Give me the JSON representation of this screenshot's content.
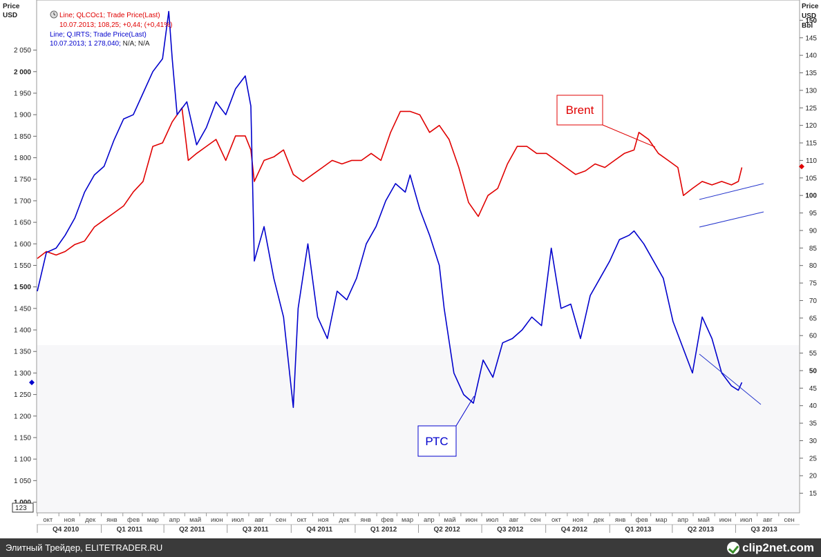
{
  "left_axis": {
    "title_line1": "Price",
    "title_line2": "USD",
    "badge": "123"
  },
  "right_axis": {
    "title_line1": "Price",
    "title_line2": "USD",
    "title_line3": "Bbl"
  },
  "legend": [
    {
      "line1": "Line; QLCOc1; Trade Price(Last)",
      "line2_a": "10.07.2013; 108,25; +0,44; (+0,41%)",
      "line2_b": "",
      "color": "#e00000"
    },
    {
      "line1": "Line; Q.IRTS; Trade Price(Last)",
      "line2_a": "10.07.2013; 1 278,040;",
      "line2_b": " N/A; N/A",
      "color": "#0000cc"
    }
  ],
  "annotations": {
    "brent": "Brent",
    "rts": "РТС"
  },
  "footer": {
    "left_text": "Элитный Трейдер, ELITETRADER.RU",
    "logo_text": "clip2net.com"
  },
  "chart_data": {
    "type": "line",
    "title": "",
    "x_start": "2010-10-01",
    "x_end": "2013-09-30",
    "left_axis": {
      "min": 980,
      "max": 2160,
      "ticks": [
        1000,
        1050,
        1100,
        1150,
        1200,
        1250,
        1300,
        1350,
        1400,
        1450,
        1500,
        1550,
        1600,
        1650,
        1700,
        1750,
        1800,
        1850,
        1900,
        1950,
        2000,
        2050
      ],
      "tick_labels": [
        "1 000",
        "1 050",
        "1 100",
        "1 150",
        "1 200",
        "1 250",
        "1 300",
        "1 350",
        "1 400",
        "1 450",
        "1 500",
        "1 550",
        "1 600",
        "1 650",
        "1 700",
        "1 750",
        "1 800",
        "1 850",
        "1 900",
        "1 950",
        "2 000",
        "2 050"
      ],
      "bold_ticks": [
        "1 000",
        "1 500",
        "2 000"
      ]
    },
    "right_axis": {
      "min": 10,
      "max": 155,
      "ticks": [
        15,
        20,
        25,
        30,
        35,
        40,
        45,
        50,
        55,
        60,
        65,
        70,
        75,
        80,
        85,
        90,
        95,
        100,
        105,
        110,
        115,
        120,
        125,
        130,
        135,
        140,
        145,
        150
      ],
      "bold_ticks": [
        50,
        100,
        150
      ]
    },
    "months": [
      {
        "date": "2010-10-01",
        "label": "окт"
      },
      {
        "date": "2010-11-01",
        "label": "ноя"
      },
      {
        "date": "2010-12-01",
        "label": "дек"
      },
      {
        "date": "2011-01-01",
        "label": "янв"
      },
      {
        "date": "2011-02-01",
        "label": "фев"
      },
      {
        "date": "2011-03-01",
        "label": "мар"
      },
      {
        "date": "2011-04-01",
        "label": "апр"
      },
      {
        "date": "2011-05-01",
        "label": "май"
      },
      {
        "date": "2011-06-01",
        "label": "июн"
      },
      {
        "date": "2011-07-01",
        "label": "июл"
      },
      {
        "date": "2011-08-01",
        "label": "авг"
      },
      {
        "date": "2011-09-01",
        "label": "сен"
      },
      {
        "date": "2011-10-01",
        "label": "окт"
      },
      {
        "date": "2011-11-01",
        "label": "ноя"
      },
      {
        "date": "2011-12-01",
        "label": "дек"
      },
      {
        "date": "2012-01-01",
        "label": "янв"
      },
      {
        "date": "2012-02-01",
        "label": "фев"
      },
      {
        "date": "2012-03-01",
        "label": "мар"
      },
      {
        "date": "2012-04-01",
        "label": "апр"
      },
      {
        "date": "2012-05-01",
        "label": "май"
      },
      {
        "date": "2012-06-01",
        "label": "июн"
      },
      {
        "date": "2012-07-01",
        "label": "июл"
      },
      {
        "date": "2012-08-01",
        "label": "авг"
      },
      {
        "date": "2012-09-01",
        "label": "сен"
      },
      {
        "date": "2012-10-01",
        "label": "окт"
      },
      {
        "date": "2012-11-01",
        "label": "ноя"
      },
      {
        "date": "2012-12-01",
        "label": "дек"
      },
      {
        "date": "2013-01-01",
        "label": "янв"
      },
      {
        "date": "2013-02-01",
        "label": "фев"
      },
      {
        "date": "2013-03-01",
        "label": "мар"
      },
      {
        "date": "2013-04-01",
        "label": "апр"
      },
      {
        "date": "2013-05-01",
        "label": "май"
      },
      {
        "date": "2013-06-01",
        "label": "июн"
      },
      {
        "date": "2013-07-01",
        "label": "июл"
      },
      {
        "date": "2013-08-01",
        "label": "авг"
      },
      {
        "date": "2013-09-01",
        "label": "сен"
      }
    ],
    "quarters": [
      {
        "label": "Q4 2010",
        "start": "2010-10-01",
        "end": "2010-12-31"
      },
      {
        "label": "Q1 2011",
        "start": "2011-01-01",
        "end": "2011-03-31"
      },
      {
        "label": "Q2 2011",
        "start": "2011-04-01",
        "end": "2011-06-30"
      },
      {
        "label": "Q3 2011",
        "start": "2011-07-01",
        "end": "2011-09-30"
      },
      {
        "label": "Q4 2011",
        "start": "2011-10-01",
        "end": "2011-12-31"
      },
      {
        "label": "Q1 2012",
        "start": "2012-01-01",
        "end": "2012-03-31"
      },
      {
        "label": "Q2 2012",
        "start": "2012-04-01",
        "end": "2012-06-30"
      },
      {
        "label": "Q3 2012",
        "start": "2012-07-01",
        "end": "2012-09-30"
      },
      {
        "label": "Q4 2012",
        "start": "2012-10-01",
        "end": "2012-12-31"
      },
      {
        "label": "Q1 2013",
        "start": "2013-01-01",
        "end": "2013-03-31"
      },
      {
        "label": "Q2 2013",
        "start": "2013-04-01",
        "end": "2013-06-30"
      },
      {
        "label": "Q3 2013",
        "start": "2013-07-01",
        "end": "2013-09-30"
      }
    ],
    "series": [
      {
        "axis": "right",
        "color": "#e00000",
        "x": [
          "2010-10-01",
          "2010-10-14",
          "2010-10-28",
          "2010-11-10",
          "2010-11-24",
          "2010-12-08",
          "2010-12-22",
          "2011-01-05",
          "2011-01-19",
          "2011-02-02",
          "2011-02-16",
          "2011-03-02",
          "2011-03-16",
          "2011-03-30",
          "2011-04-13",
          "2011-04-27",
          "2011-05-06",
          "2011-05-18",
          "2011-06-01",
          "2011-06-15",
          "2011-06-29",
          "2011-07-13",
          "2011-07-27",
          "2011-08-04",
          "2011-08-09",
          "2011-08-23",
          "2011-09-06",
          "2011-09-20",
          "2011-10-04",
          "2011-10-18",
          "2011-11-01",
          "2011-11-15",
          "2011-11-29",
          "2011-12-13",
          "2011-12-27",
          "2012-01-10",
          "2012-01-24",
          "2012-02-07",
          "2012-02-21",
          "2012-03-06",
          "2012-03-20",
          "2012-04-03",
          "2012-04-17",
          "2012-05-01",
          "2012-05-15",
          "2012-05-29",
          "2012-06-12",
          "2012-06-26",
          "2012-07-10",
          "2012-07-24",
          "2012-08-07",
          "2012-08-21",
          "2012-09-04",
          "2012-09-18",
          "2012-10-02",
          "2012-10-16",
          "2012-10-30",
          "2012-11-13",
          "2012-11-27",
          "2012-12-11",
          "2012-12-25",
          "2013-01-08",
          "2013-01-22",
          "2013-02-05",
          "2013-02-12",
          "2013-02-26",
          "2013-03-12",
          "2013-03-26",
          "2013-04-09",
          "2013-04-17",
          "2013-04-30",
          "2013-05-14",
          "2013-05-28",
          "2013-06-11",
          "2013-06-25",
          "2013-07-05",
          "2013-07-10"
        ],
        "values": [
          82,
          84,
          83,
          84,
          86,
          87,
          91,
          93,
          95,
          97,
          101,
          104,
          114,
          115,
          121,
          125,
          110,
          112,
          114,
          116,
          110,
          117,
          117,
          113,
          104,
          110,
          111,
          113,
          106,
          104,
          106,
          108,
          110,
          109,
          110,
          110,
          112,
          110,
          118,
          124,
          124,
          123,
          118,
          120,
          116,
          108,
          98,
          94,
          100,
          102,
          109,
          114,
          114,
          112,
          112,
          110,
          108,
          106,
          107,
          109,
          108,
          110,
          112,
          113,
          118,
          116,
          112,
          110,
          108,
          100,
          102,
          104,
          103,
          104,
          103,
          104,
          108
        ]
      },
      {
        "axis": "left",
        "color": "#0000cc",
        "x": [
          "2010-10-01",
          "2010-10-14",
          "2010-10-28",
          "2010-11-10",
          "2010-11-24",
          "2010-12-08",
          "2010-12-22",
          "2011-01-05",
          "2011-01-19",
          "2011-02-02",
          "2011-02-16",
          "2011-03-02",
          "2011-03-16",
          "2011-03-30",
          "2011-04-08",
          "2011-04-13",
          "2011-04-20",
          "2011-05-04",
          "2011-05-18",
          "2011-06-01",
          "2011-06-15",
          "2011-06-29",
          "2011-07-13",
          "2011-07-27",
          "2011-08-04",
          "2011-08-09",
          "2011-08-23",
          "2011-09-06",
          "2011-09-20",
          "2011-10-04",
          "2011-10-11",
          "2011-10-25",
          "2011-11-08",
          "2011-11-22",
          "2011-12-06",
          "2011-12-20",
          "2012-01-03",
          "2012-01-17",
          "2012-01-31",
          "2012-02-14",
          "2012-02-28",
          "2012-03-13",
          "2012-03-20",
          "2012-04-03",
          "2012-04-17",
          "2012-05-01",
          "2012-05-08",
          "2012-05-22",
          "2012-06-05",
          "2012-06-19",
          "2012-07-03",
          "2012-07-17",
          "2012-07-31",
          "2012-08-14",
          "2012-08-28",
          "2012-09-11",
          "2012-09-25",
          "2012-10-09",
          "2012-10-23",
          "2012-11-06",
          "2012-11-20",
          "2012-12-04",
          "2012-12-18",
          "2013-01-01",
          "2013-01-15",
          "2013-01-29",
          "2013-02-05",
          "2013-02-19",
          "2013-03-05",
          "2013-03-19",
          "2013-04-02",
          "2013-04-16",
          "2013-04-30",
          "2013-05-14",
          "2013-05-28",
          "2013-06-11",
          "2013-06-25",
          "2013-07-05",
          "2013-07-10"
        ],
        "values": [
          1490,
          1580,
          1590,
          1620,
          1660,
          1720,
          1760,
          1780,
          1840,
          1890,
          1900,
          1950,
          2000,
          2030,
          2140,
          2030,
          1900,
          1930,
          1830,
          1870,
          1930,
          1900,
          1960,
          1990,
          1920,
          1560,
          1640,
          1520,
          1430,
          1220,
          1450,
          1600,
          1430,
          1380,
          1490,
          1470,
          1520,
          1600,
          1640,
          1700,
          1740,
          1720,
          1760,
          1680,
          1620,
          1550,
          1450,
          1300,
          1250,
          1230,
          1330,
          1290,
          1370,
          1380,
          1400,
          1430,
          1410,
          1590,
          1450,
          1460,
          1380,
          1480,
          1520,
          1560,
          1610,
          1620,
          1630,
          1600,
          1560,
          1520,
          1420,
          1360,
          1300,
          1430,
          1380,
          1300,
          1270,
          1260,
          1278
        ]
      }
    ],
    "last_values": {
      "brent": 108.25,
      "rts": 1278.04
    }
  }
}
